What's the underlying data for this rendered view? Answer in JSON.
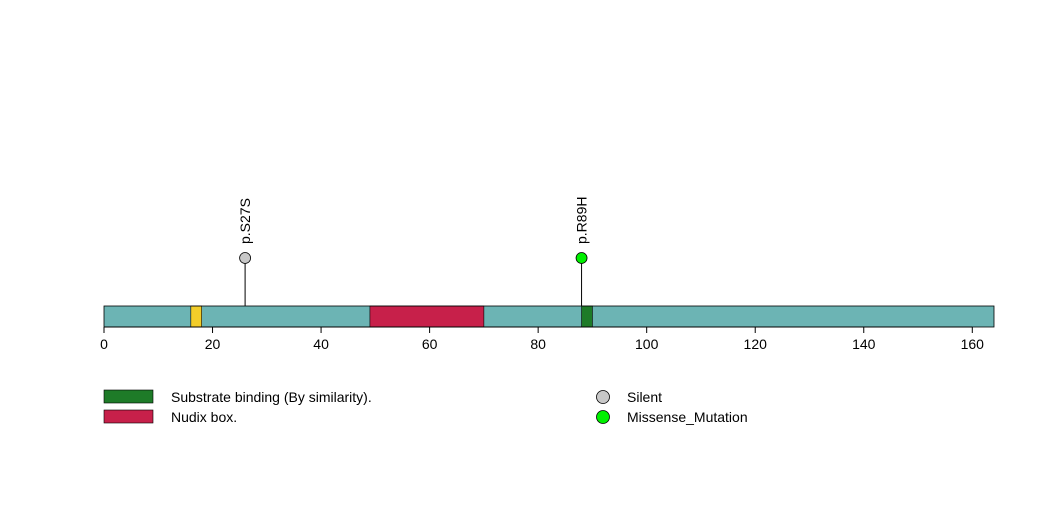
{
  "chart_data": {
    "type": "lollipop",
    "xlim": [
      0,
      164
    ],
    "x_ticks": [
      0,
      20,
      40,
      60,
      80,
      100,
      120,
      140,
      160
    ],
    "protein_color": "#6CB4B4",
    "domains": [
      {
        "start": 16,
        "end": 18,
        "color": "#F2CD2A",
        "label": ""
      },
      {
        "start": 49,
        "end": 70,
        "color": "#C7204A",
        "label": "Nudix box."
      },
      {
        "start": 88,
        "end": 90,
        "color": "#1E7B28",
        "label": "Substrate binding (By similarity)."
      }
    ],
    "mutations": [
      {
        "position": 26,
        "label": "p.S27S",
        "type": "Silent",
        "color": "#C8C8C8"
      },
      {
        "position": 88,
        "label": "p.R89H",
        "type": "Missense_Mutation",
        "color": "#00F000"
      }
    ],
    "legend": {
      "domains": [
        {
          "label": "Substrate binding (By similarity).",
          "color": "#1E7B28"
        },
        {
          "label": "Nudix box.",
          "color": "#C7204A"
        }
      ],
      "mutation_types": [
        {
          "label": "Silent",
          "color": "#C8C8C8"
        },
        {
          "label": "Missense_Mutation",
          "color": "#00F000"
        }
      ]
    }
  }
}
